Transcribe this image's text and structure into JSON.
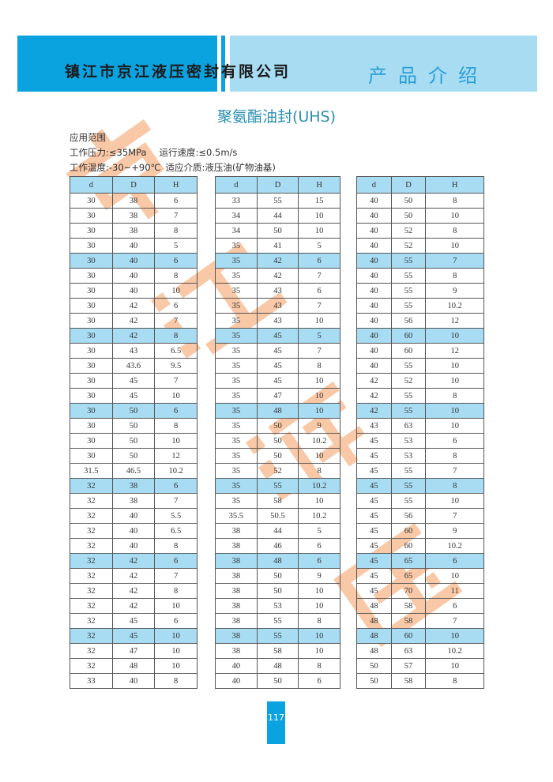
{
  "header": {
    "company": "镇江市京江液压密封有限公司",
    "section": "产品介绍"
  },
  "title": "聚氨酯油封(UHS)",
  "specs": {
    "heading": "应用范围",
    "pressure": "工作压力:≤35MPa",
    "speed": "运行速度:≤0.5m/s",
    "temperature": "工作温度:-30~+90℃",
    "medium": "适应介质:液压油(矿物油基)"
  },
  "watermark": [
    "京",
    "江",
    "液",
    "压"
  ],
  "colors": {
    "brand_blue": "#0aa3e0",
    "light_blue": "#a8dcf3",
    "watermark": "#f6b080"
  },
  "columns": [
    "d",
    "D",
    "H"
  ],
  "tables": [
    [
      [
        "30",
        "38",
        "6"
      ],
      [
        "30",
        "38",
        "7"
      ],
      [
        "30",
        "38",
        "8"
      ],
      [
        "30",
        "40",
        "5"
      ],
      [
        "30",
        "40",
        "6"
      ],
      [
        "30",
        "40",
        "8"
      ],
      [
        "30",
        "40",
        "10"
      ],
      [
        "30",
        "42",
        "6"
      ],
      [
        "30",
        "42",
        "7"
      ],
      [
        "30",
        "42",
        "8"
      ],
      [
        "30",
        "43",
        "6.5"
      ],
      [
        "30",
        "43.6",
        "9.5"
      ],
      [
        "30",
        "45",
        "7"
      ],
      [
        "30",
        "45",
        "10"
      ],
      [
        "30",
        "50",
        "6"
      ],
      [
        "30",
        "50",
        "8"
      ],
      [
        "30",
        "50",
        "10"
      ],
      [
        "30",
        "50",
        "12"
      ],
      [
        "31.5",
        "46.5",
        "10.2"
      ],
      [
        "32",
        "38",
        "6"
      ],
      [
        "32",
        "38",
        "7"
      ],
      [
        "32",
        "40",
        "5.5"
      ],
      [
        "32",
        "40",
        "6.5"
      ],
      [
        "32",
        "40",
        "8"
      ],
      [
        "32",
        "42",
        "6"
      ],
      [
        "32",
        "42",
        "7"
      ],
      [
        "32",
        "42",
        "8"
      ],
      [
        "32",
        "42",
        "10"
      ],
      [
        "32",
        "45",
        "6"
      ],
      [
        "32",
        "45",
        "10"
      ],
      [
        "32",
        "47",
        "10"
      ],
      [
        "32",
        "48",
        "10"
      ],
      [
        "33",
        "40",
        "8"
      ]
    ],
    [
      [
        "33",
        "55",
        "15"
      ],
      [
        "34",
        "44",
        "10"
      ],
      [
        "34",
        "50",
        "10"
      ],
      [
        "35",
        "41",
        "5"
      ],
      [
        "35",
        "42",
        "6"
      ],
      [
        "35",
        "42",
        "7"
      ],
      [
        "35",
        "43",
        "6"
      ],
      [
        "35",
        "43",
        "7"
      ],
      [
        "35",
        "43",
        "10"
      ],
      [
        "35",
        "45",
        "5"
      ],
      [
        "35",
        "45",
        "7"
      ],
      [
        "35",
        "45",
        "8"
      ],
      [
        "35",
        "45",
        "10"
      ],
      [
        "35",
        "47",
        "10"
      ],
      [
        "35",
        "48",
        "10"
      ],
      [
        "35",
        "50",
        "9"
      ],
      [
        "35",
        "50",
        "10.2"
      ],
      [
        "35",
        "50",
        "10"
      ],
      [
        "35",
        "52",
        "8"
      ],
      [
        "35",
        "55",
        "10.2"
      ],
      [
        "35",
        "58",
        "10"
      ],
      [
        "35.5",
        "50.5",
        "10.2"
      ],
      [
        "38",
        "44",
        "5"
      ],
      [
        "38",
        "46",
        "6"
      ],
      [
        "38",
        "48",
        "6"
      ],
      [
        "38",
        "50",
        "9"
      ],
      [
        "38",
        "50",
        "10"
      ],
      [
        "38",
        "53",
        "10"
      ],
      [
        "38",
        "55",
        "8"
      ],
      [
        "38",
        "55",
        "10"
      ],
      [
        "38",
        "58",
        "10"
      ],
      [
        "40",
        "48",
        "8"
      ],
      [
        "40",
        "50",
        "6"
      ]
    ],
    [
      [
        "40",
        "50",
        "8"
      ],
      [
        "40",
        "50",
        "10"
      ],
      [
        "40",
        "52",
        "8"
      ],
      [
        "40",
        "52",
        "10"
      ],
      [
        "40",
        "55",
        "7"
      ],
      [
        "40",
        "55",
        "8"
      ],
      [
        "40",
        "55",
        "9"
      ],
      [
        "40",
        "55",
        "10.2"
      ],
      [
        "40",
        "56",
        "12"
      ],
      [
        "40",
        "60",
        "10"
      ],
      [
        "40",
        "60",
        "12"
      ],
      [
        "40",
        "55",
        "10"
      ],
      [
        "42",
        "52",
        "10"
      ],
      [
        "42",
        "55",
        "8"
      ],
      [
        "42",
        "55",
        "10"
      ],
      [
        "43",
        "63",
        "10"
      ],
      [
        "45",
        "53",
        "6"
      ],
      [
        "45",
        "53",
        "8"
      ],
      [
        "45",
        "55",
        "7"
      ],
      [
        "45",
        "55",
        "8"
      ],
      [
        "45",
        "55",
        "10"
      ],
      [
        "45",
        "56",
        "7"
      ],
      [
        "45",
        "60",
        "9"
      ],
      [
        "45",
        "60",
        "10.2"
      ],
      [
        "45",
        "65",
        "6"
      ],
      [
        "45",
        "65",
        "10"
      ],
      [
        "45",
        "70",
        "11"
      ],
      [
        "48",
        "58",
        "6"
      ],
      [
        "48",
        "58",
        "7"
      ],
      [
        "48",
        "60",
        "10"
      ],
      [
        "48",
        "63",
        "10.2"
      ],
      [
        "50",
        "57",
        "10"
      ],
      [
        "50",
        "58",
        "8"
      ]
    ]
  ],
  "page_number": "117"
}
